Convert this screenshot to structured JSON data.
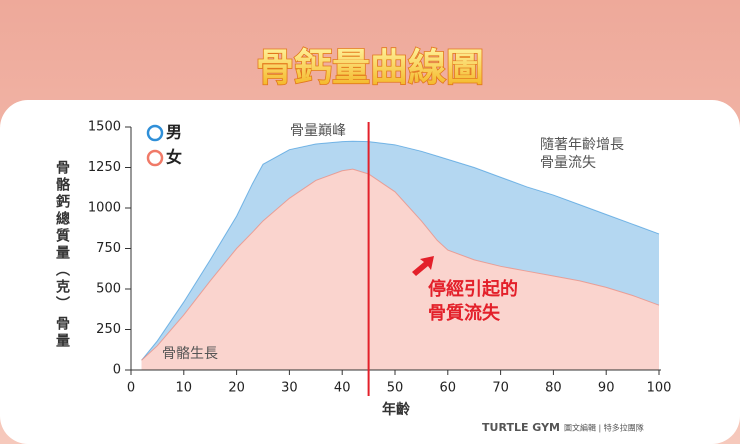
{
  "chart_data": {
    "type": "area",
    "title": "骨鈣量曲線圖",
    "y_label": "骨骼鈣總質量（克）",
    "y_label_2": "骨量",
    "x_label": "年齡",
    "xlim": [
      0,
      100
    ],
    "xticks": [
      0,
      10,
      20,
      30,
      40,
      50,
      60,
      70,
      80,
      90,
      100
    ],
    "ylim": [
      0,
      1500
    ],
    "yticks": [
      0,
      250,
      500,
      750,
      1000,
      1250,
      1500
    ],
    "x": [
      2,
      5,
      10,
      15,
      20,
      23,
      25,
      30,
      35,
      40,
      42,
      45,
      50,
      55,
      58,
      60,
      65,
      70,
      75,
      80,
      85,
      90,
      95,
      100
    ],
    "series": [
      {
        "name": "男",
        "color": "#2f8fd8",
        "values": [
          60,
          180,
          420,
          680,
          950,
          1150,
          1270,
          1360,
          1395,
          1410,
          1412,
          1410,
          1390,
          1350,
          1320,
          1300,
          1250,
          1190,
          1130,
          1080,
          1020,
          960,
          900,
          840
        ]
      },
      {
        "name": "女",
        "color": "#f07a68",
        "values": [
          60,
          150,
          340,
          550,
          750,
          850,
          920,
          1060,
          1170,
          1230,
          1240,
          1210,
          1100,
          920,
          800,
          740,
          680,
          640,
          610,
          580,
          550,
          510,
          460,
          400
        ]
      }
    ],
    "vline": 45,
    "annotations": [
      {
        "lines": [
          "骨量巔峰"
        ]
      },
      {
        "lines": [
          "隨著年齡增長",
          "骨量流失"
        ]
      },
      {
        "lines": [
          "停經引起的",
          "骨質流失"
        ]
      },
      {
        "lines": [
          "骨骼生長"
        ]
      }
    ],
    "logo": "TURTLE GYM",
    "credit": "圖文編輯 | 特多拉團隊"
  }
}
